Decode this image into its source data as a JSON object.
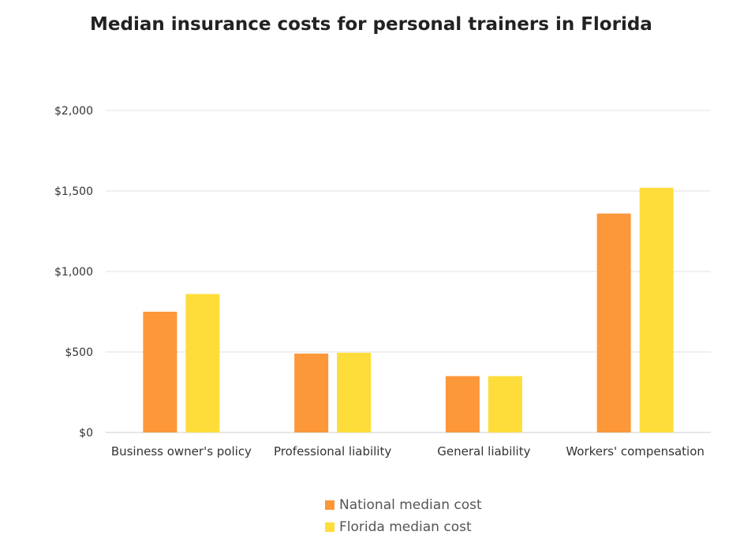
{
  "chart_data": {
    "type": "bar",
    "title": "Median insurance costs for personal trainers in Florida",
    "categories": [
      "Business owner's policy",
      "Professional liability",
      "General liability",
      "Workers' compensation"
    ],
    "series": [
      {
        "name": "National median cost",
        "color": "#fc973a",
        "values": [
          750,
          490,
          350,
          1360
        ]
      },
      {
        "name": "Florida median cost",
        "color": "#fedd3a",
        "values": [
          860,
          495,
          350,
          1520
        ]
      }
    ],
    "ylim": [
      0,
      2000
    ],
    "yticks": [
      0,
      500,
      1000,
      1500,
      2000
    ],
    "ytick_labels": [
      "$0",
      "$500",
      "$1,000",
      "$1,500",
      "$2,000"
    ],
    "xlabel": "",
    "ylabel": "",
    "grid": true,
    "legend_position": "bottom"
  }
}
